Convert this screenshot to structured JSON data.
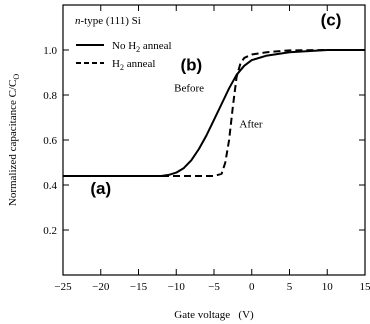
{
  "chart_data": {
    "type": "line",
    "title": "",
    "xlabel": "Gate voltage   (V)",
    "ylabel": "Normalized capacitance C/C",
    "ylabel_subscript": "O",
    "xlim": [
      -25,
      15
    ],
    "ylim": [
      0.0,
      1.2
    ],
    "x_ticks": [
      -25,
      -20,
      -15,
      -10,
      -5,
      0,
      5,
      10,
      15
    ],
    "y_ticks": [
      0.2,
      0.4,
      0.6,
      0.8,
      1.0
    ],
    "y_tick_labels": [
      "0.2",
      "0.4",
      "0.6",
      "0.8",
      "1.0"
    ],
    "grid": false,
    "legend": {
      "placement": "top-left",
      "header": {
        "italic": "n",
        "text": "-type (111) Si"
      },
      "entries": [
        {
          "label": "No H",
          "subscript": "2",
          "label_end": " anneal",
          "style": "solid"
        },
        {
          "label": "H",
          "subscript": "2",
          "label_end": " anneal",
          "style": "dashed"
        }
      ]
    },
    "series": [
      {
        "name": "No H2 anneal",
        "style": "solid",
        "x": [
          -25,
          -12,
          -11,
          -10,
          -9,
          -8,
          -7,
          -6,
          -5,
          -4,
          -3,
          -2,
          -1,
          0,
          2,
          5,
          10,
          15
        ],
        "y": [
          0.44,
          0.44,
          0.445,
          0.455,
          0.475,
          0.51,
          0.56,
          0.62,
          0.69,
          0.76,
          0.83,
          0.89,
          0.93,
          0.955,
          0.975,
          0.99,
          1.0,
          1.0
        ]
      },
      {
        "name": "H2 anneal",
        "style": "dashed",
        "x": [
          -25,
          -5,
          -4,
          -3.5,
          -3,
          -2.5,
          -2,
          -1.5,
          -1,
          0,
          2,
          5,
          10,
          15
        ],
        "y": [
          0.44,
          0.44,
          0.45,
          0.5,
          0.6,
          0.75,
          0.88,
          0.94,
          0.965,
          0.98,
          0.99,
          0.998,
          1.0,
          1.0
        ]
      }
    ],
    "annotations": [
      {
        "text": "(a)",
        "x": -20,
        "y": 0.36,
        "bold": true
      },
      {
        "text": "(b)",
        "x": -8,
        "y": 0.91,
        "bold": true
      },
      {
        "text": "Before",
        "x": -8.3,
        "y": 0.815,
        "bold": false
      },
      {
        "text": "After",
        "x": -0.1,
        "y": 0.655,
        "bold": false
      },
      {
        "text": "(c)",
        "x": 10.5,
        "y": 1.11,
        "bold": true
      }
    ]
  }
}
